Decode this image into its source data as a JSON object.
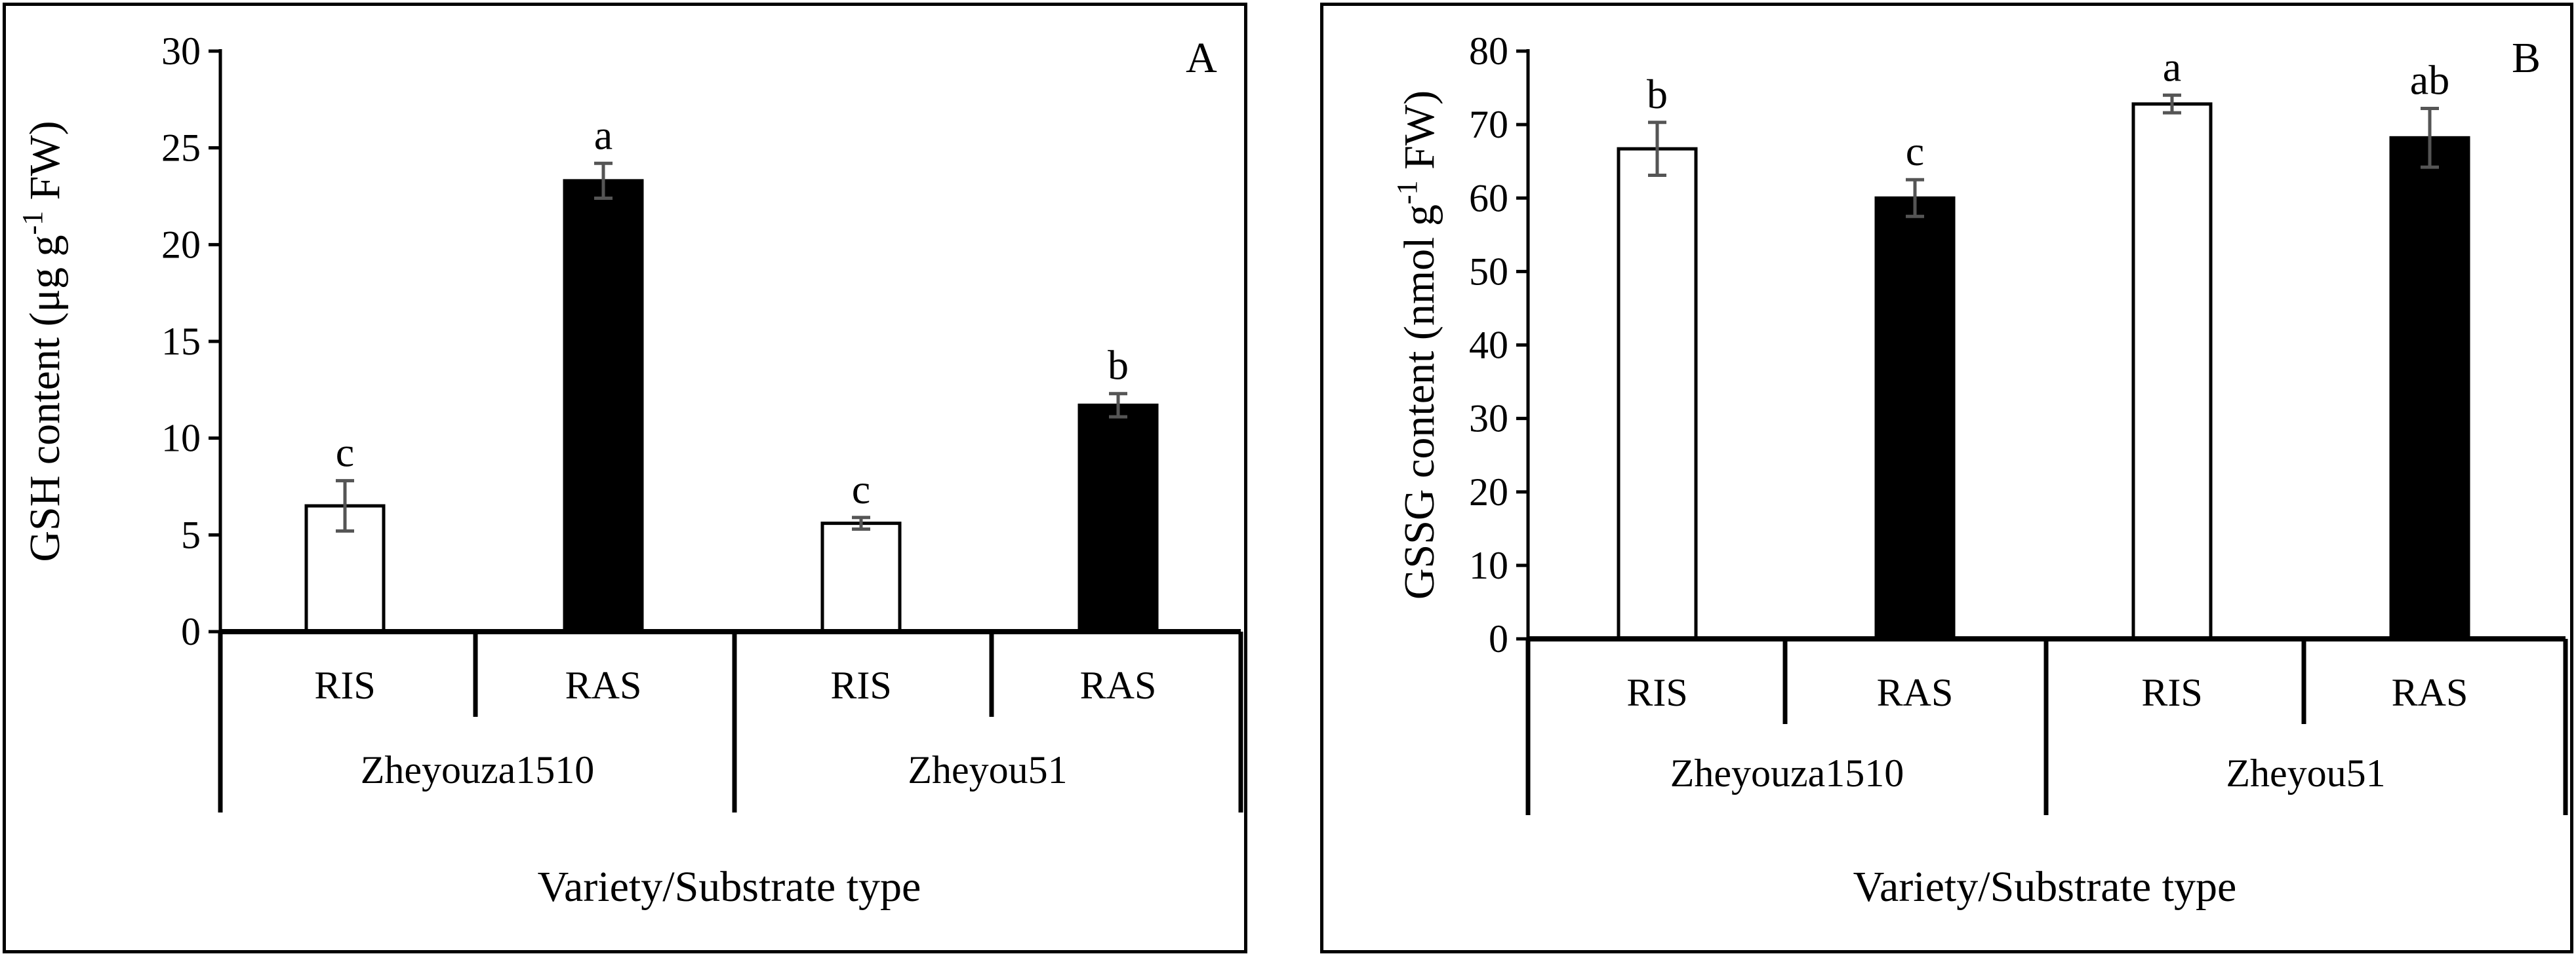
{
  "chart_data": [
    {
      "type": "bar",
      "panel_label": "A",
      "ylabel_main": "GSH content (μg g",
      "ylabel_sup": "-1",
      "ylabel_tail": " FW)",
      "xlabel": "Variety/Substrate type",
      "ylim": [
        0,
        30
      ],
      "yticks": [
        "0",
        "5",
        "10",
        "15",
        "20",
        "25",
        "30"
      ],
      "ytick_values": [
        0,
        5,
        10,
        15,
        20,
        25,
        30
      ],
      "groups": [
        "Zheyouza1510",
        "Zheyou51"
      ],
      "categories": [
        "RIS",
        "RAS",
        "RIS",
        "RAS"
      ],
      "values": [
        6.5,
        23.3,
        5.6,
        11.7
      ],
      "errors": [
        1.3,
        0.9,
        0.3,
        0.6
      ],
      "significance": [
        "c",
        "a",
        "c",
        "b"
      ],
      "fills": [
        "#ffffff",
        "#000000",
        "#ffffff",
        "#000000"
      ]
    },
    {
      "type": "bar",
      "panel_label": "B",
      "ylabel_main": "GSSG content (nmol g",
      "ylabel_sup": "-1",
      "ylabel_tail": " FW)",
      "xlabel": "Variety/Substrate type",
      "ylim": [
        0,
        80
      ],
      "yticks": [
        "0",
        "10",
        "20",
        "30",
        "40",
        "50",
        "60",
        "70",
        "80"
      ],
      "ytick_values": [
        0,
        10,
        20,
        30,
        40,
        50,
        60,
        70,
        80
      ],
      "groups": [
        "Zheyouza1510",
        "Zheyou51"
      ],
      "categories": [
        "RIS",
        "RAS",
        "RIS",
        "RAS"
      ],
      "values": [
        66.7,
        60.0,
        72.8,
        68.2
      ],
      "errors": [
        3.6,
        2.5,
        1.2,
        4.0
      ],
      "significance": [
        "b",
        "c",
        "a",
        "ab"
      ],
      "fills": [
        "#ffffff",
        "#000000",
        "#ffffff",
        "#000000"
      ]
    }
  ]
}
